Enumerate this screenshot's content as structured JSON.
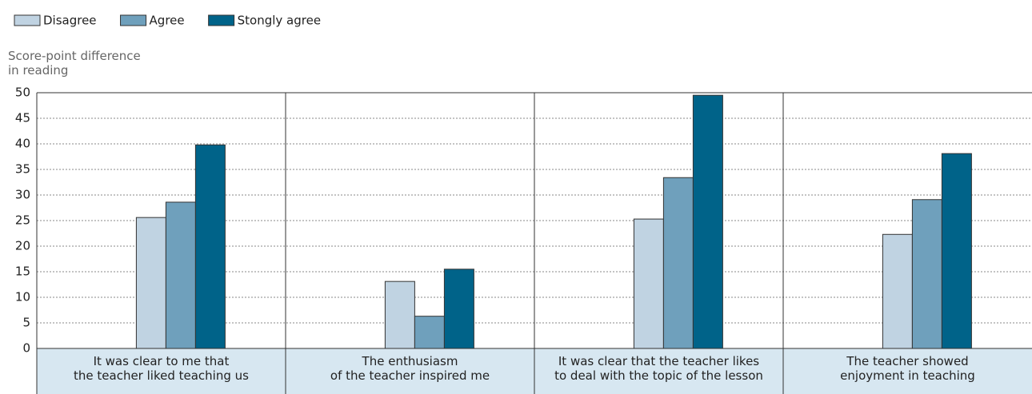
{
  "chart_data": {
    "type": "bar",
    "y_label": "Score-point difference\nin reading",
    "categories": [
      "It was clear to me that\nthe teacher liked teaching us",
      "The enthusiasm\nof the teacher inspired me",
      "It was clear that the teacher likes\nto deal with the topic of the lesson",
      "The teacher showed\nenjoyment in teaching"
    ],
    "series": [
      {
        "name": "Disagree",
        "color": "#c0d3e2",
        "values": [
          25.6,
          13.1,
          25.3,
          22.3
        ]
      },
      {
        "name": "Agree",
        "color": "#6fa0bc",
        "values": [
          28.6,
          6.3,
          33.4,
          29.1
        ]
      },
      {
        "name": "Stongly agree",
        "color": "#006389",
        "values": [
          39.8,
          15.5,
          49.5,
          38.1
        ]
      }
    ],
    "ylim": [
      0,
      50
    ],
    "yticks": [
      0,
      5,
      10,
      15,
      20,
      25,
      30,
      35,
      40,
      45,
      50
    ],
    "grid": true,
    "legend": "top-left"
  }
}
